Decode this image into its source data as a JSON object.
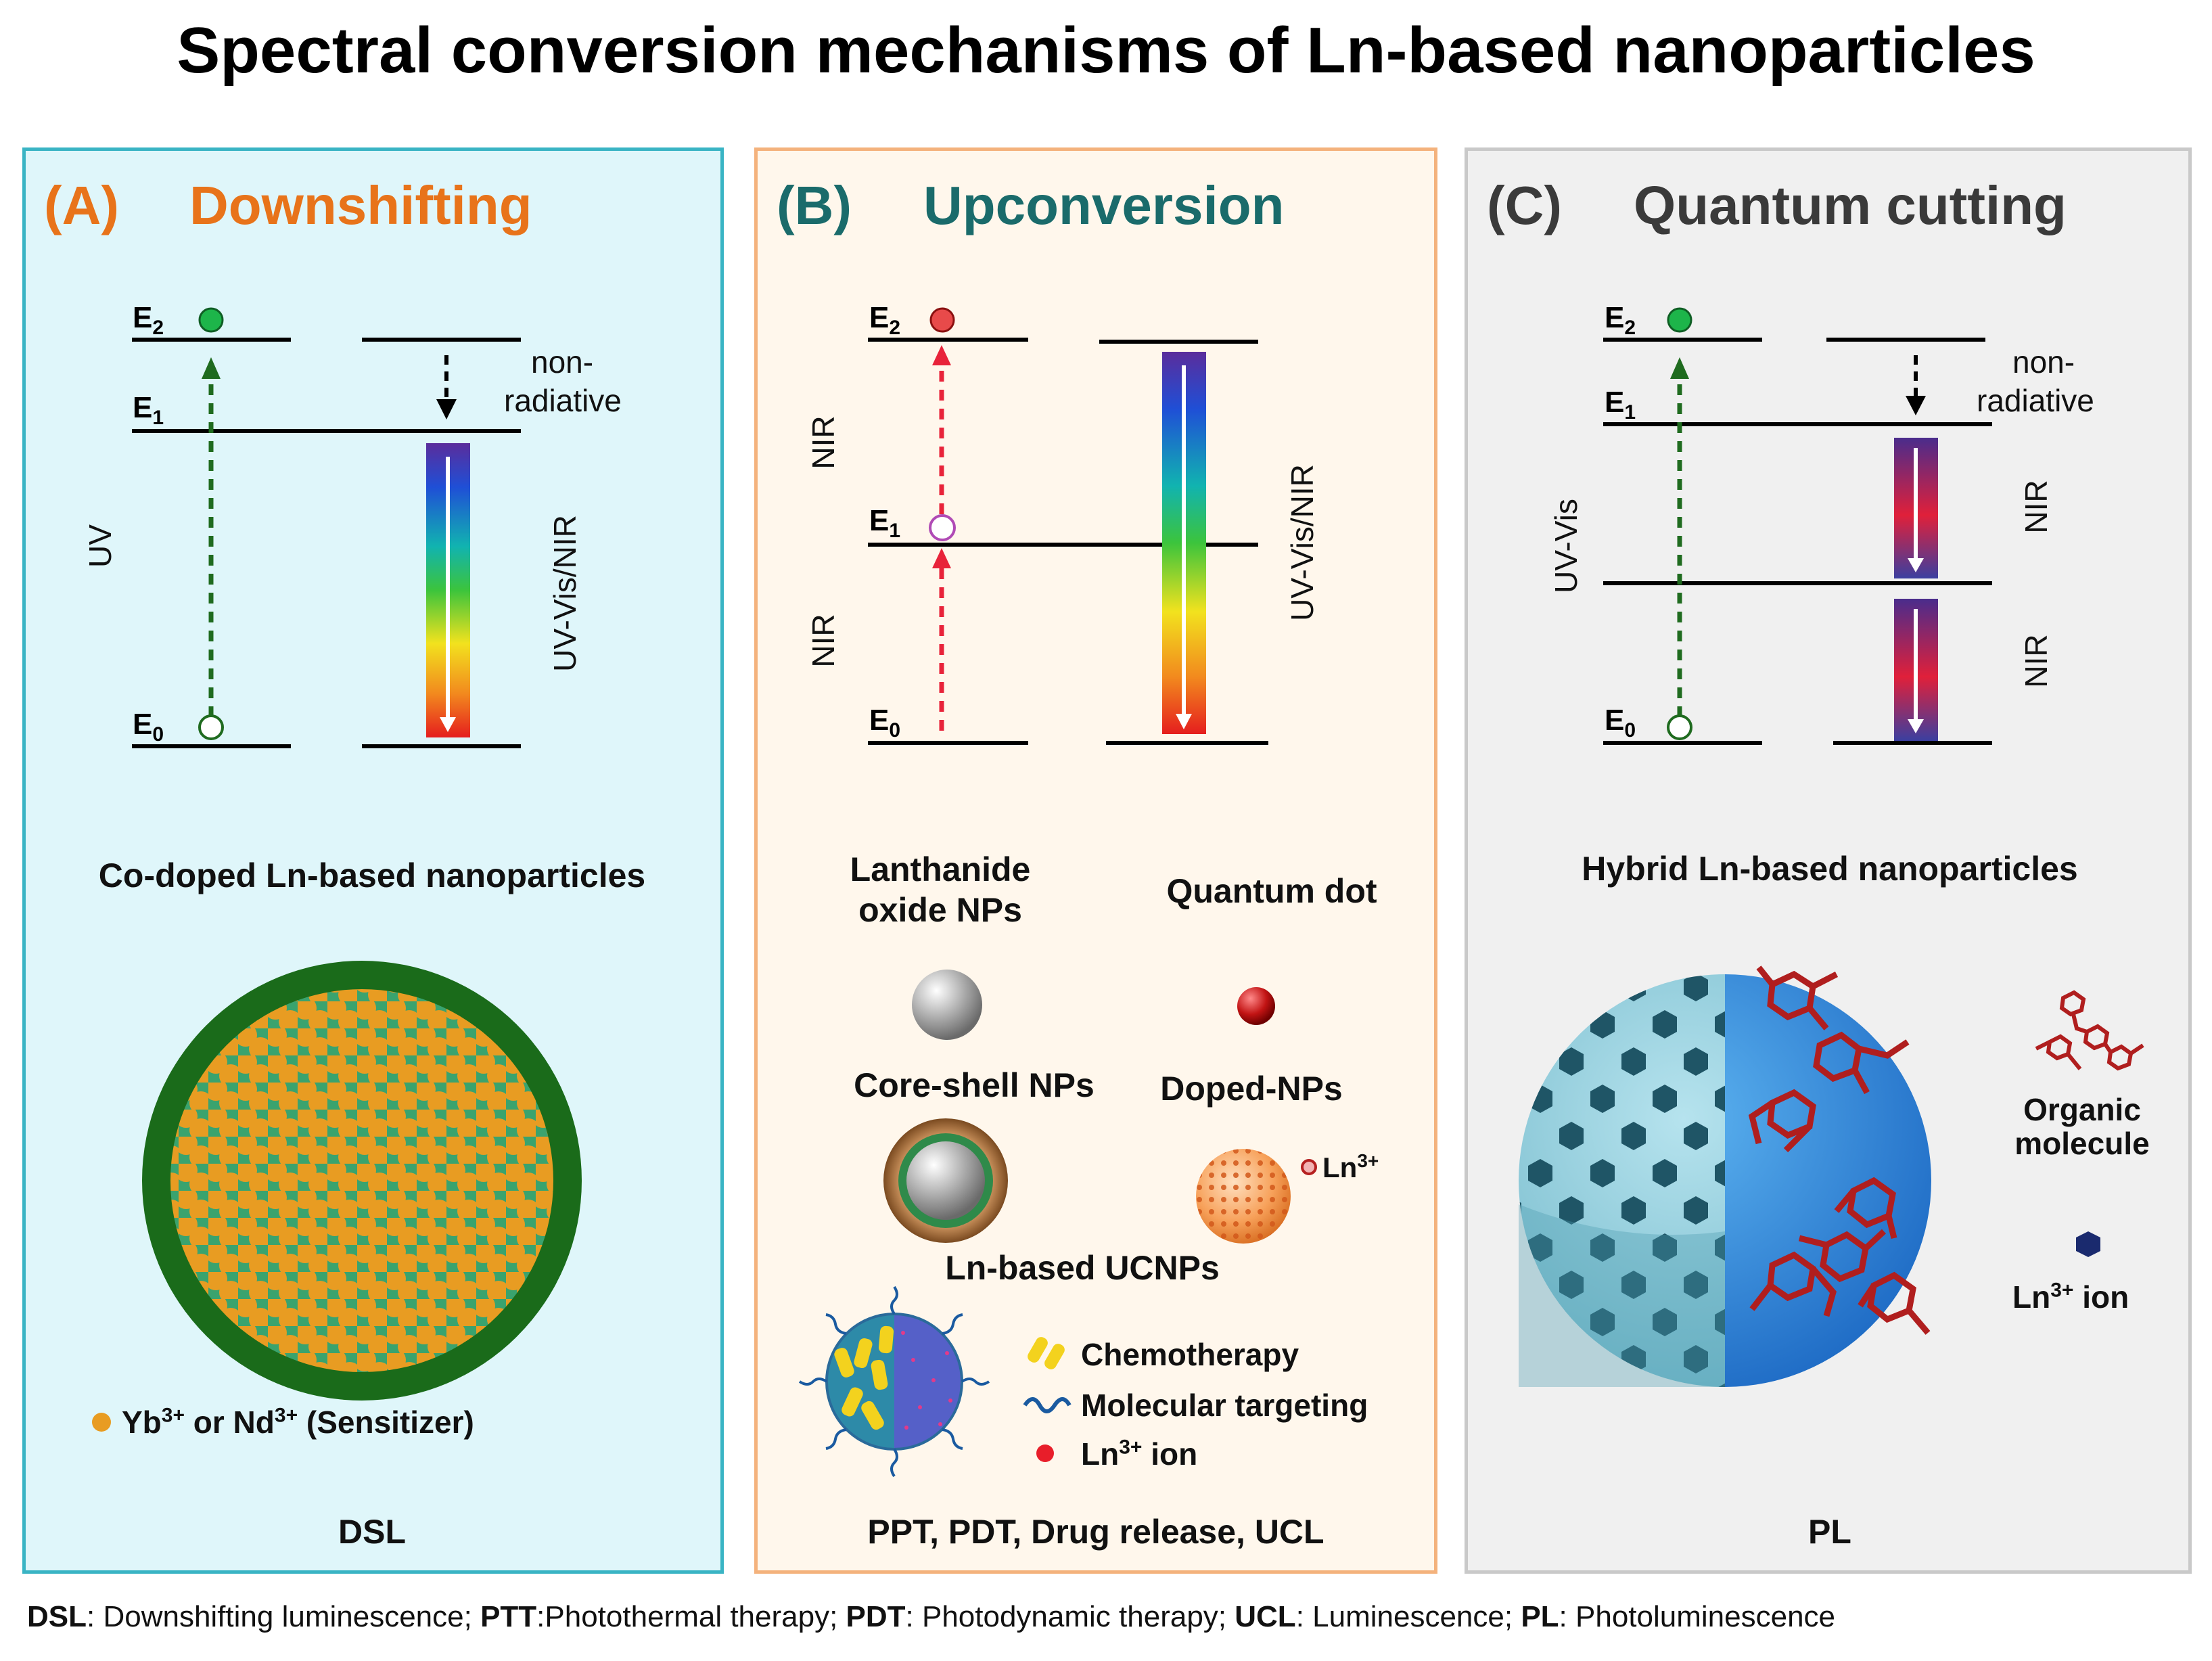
{
  "title": "Spectral conversion mechanisms of Ln-based nanoparticles",
  "panels": {
    "a": {
      "letter": "(A)",
      "heading": "Downshifting",
      "e2": "E",
      "e2_sub": "2",
      "e1": "E",
      "e1_sub": "1",
      "e0": "E",
      "e0_sub": "0",
      "nonrad1": "non-",
      "nonrad2": "radiative",
      "excitation": "UV",
      "emission": "UV-Vis/NIR",
      "subtitle": "Co-doped Ln-based nanoparticles",
      "legend_pre": "Yb",
      "legend_sup1": "3+",
      "legend_mid": " or Nd",
      "legend_sup2": "3+",
      "legend_post": " (Sensitizer)",
      "bottom": "DSL",
      "colors": {
        "border": "#39b4c4",
        "background": "#dff6fa",
        "heading": "#e8731a",
        "shell": "#1f6b1f",
        "dot": "#e89c22"
      }
    },
    "b": {
      "letter": "(B)",
      "heading": "Upconversion",
      "e2": "E",
      "e2_sub": "2",
      "e1": "E",
      "e1_sub": "1",
      "e0": "E",
      "e0_sub": "0",
      "nir_upper": "NIR",
      "nir_lower": "NIR",
      "emission": "UV-Vis/NIR",
      "np1_line1": "Lanthanide",
      "np1_line2": "oxide NPs",
      "np2": "Quantum dot",
      "np3": "Core-shell NPs",
      "np4": "Doped-NPs",
      "ln_pre": "Ln",
      "ln_sup": "3+",
      "ucnps": "Ln-based UCNPs",
      "legend_chemo": "Chemotherapy",
      "legend_target": "Molecular targeting",
      "legend_ion_pre": "Ln",
      "legend_ion_sup": "3+",
      "legend_ion_post": " ion",
      "bottom": "PPT, PDT, Drug release, UCL",
      "colors": {
        "border": "#f4b27c",
        "background": "#fff7ec",
        "heading": "#1a6b6b"
      }
    },
    "c": {
      "letter": "(C)",
      "heading": "Quantum cutting",
      "e2": "E",
      "e2_sub": "2",
      "e1": "E",
      "e1_sub": "1",
      "e0": "E",
      "e0_sub": "0",
      "nonrad1": "non-",
      "nonrad2": "radiative",
      "excitation": "UV-Vis",
      "emission_upper": "NIR",
      "emission_lower": "NIR",
      "subtitle": "Hybrid Ln-based nanoparticles",
      "legend_org1": "Organic",
      "legend_org2": "molecule",
      "legend_ion_pre": "Ln",
      "legend_ion_sup": "3+",
      "legend_ion_post": " ion",
      "bottom": "PL",
      "colors": {
        "border": "#c9c9c9",
        "background": "#f0f0f0",
        "heading": "#3a3a3a"
      }
    }
  },
  "footnote": {
    "k1": "DSL",
    "v1": ": Downshifting luminescence; ",
    "k2": "PTT",
    "v2": ":Photothermal therapy; ",
    "k3": "PDT",
    "v3": ": Photodynamic therapy; ",
    "k4": "UCL",
    "v4": ": Luminescence; ",
    "k5": "PL",
    "v5": ": Photoluminescence"
  }
}
